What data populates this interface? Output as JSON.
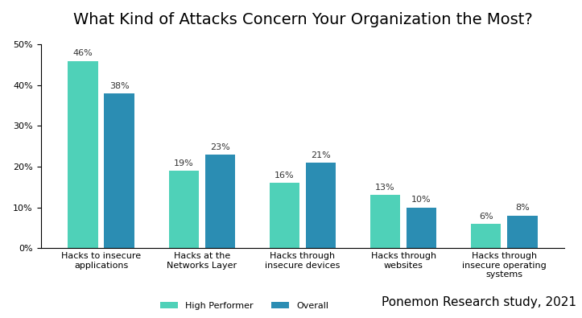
{
  "chart_data": {
    "type": "bar",
    "title": "What Kind of Attacks Concern Your Organization the Most?",
    "categories": [
      "Hacks to insecure applications",
      "Hacks at the Networks Layer",
      "Hacks through insecure devices",
      "Hacks through websites",
      "Hacks through insecure operating systems"
    ],
    "series": [
      {
        "name": "High Performer",
        "color": "#4fd1b8",
        "values": [
          46,
          19,
          16,
          13,
          6
        ],
        "value_labels": [
          "46%",
          "19%",
          "16%",
          "13%",
          "6%"
        ]
      },
      {
        "name": "Overall",
        "color": "#2b8db3",
        "values": [
          38,
          23,
          21,
          10,
          8
        ],
        "value_labels": [
          "38%",
          "23%",
          "21%",
          "10%",
          "8%"
        ]
      }
    ],
    "ylim": [
      0,
      50
    ],
    "yticks": [
      {
        "value": 0,
        "label": "0%"
      },
      {
        "value": 10,
        "label": "10%"
      },
      {
        "value": 20,
        "label": "20%"
      },
      {
        "value": 30,
        "label": "30%"
      },
      {
        "value": 40,
        "label": "40%"
      },
      {
        "value": 50,
        "label": "50%"
      }
    ],
    "grid": false,
    "legend": "lower center",
    "data_labels": true,
    "annotations": [
      "Ponemon Research study, 2021"
    ]
  }
}
